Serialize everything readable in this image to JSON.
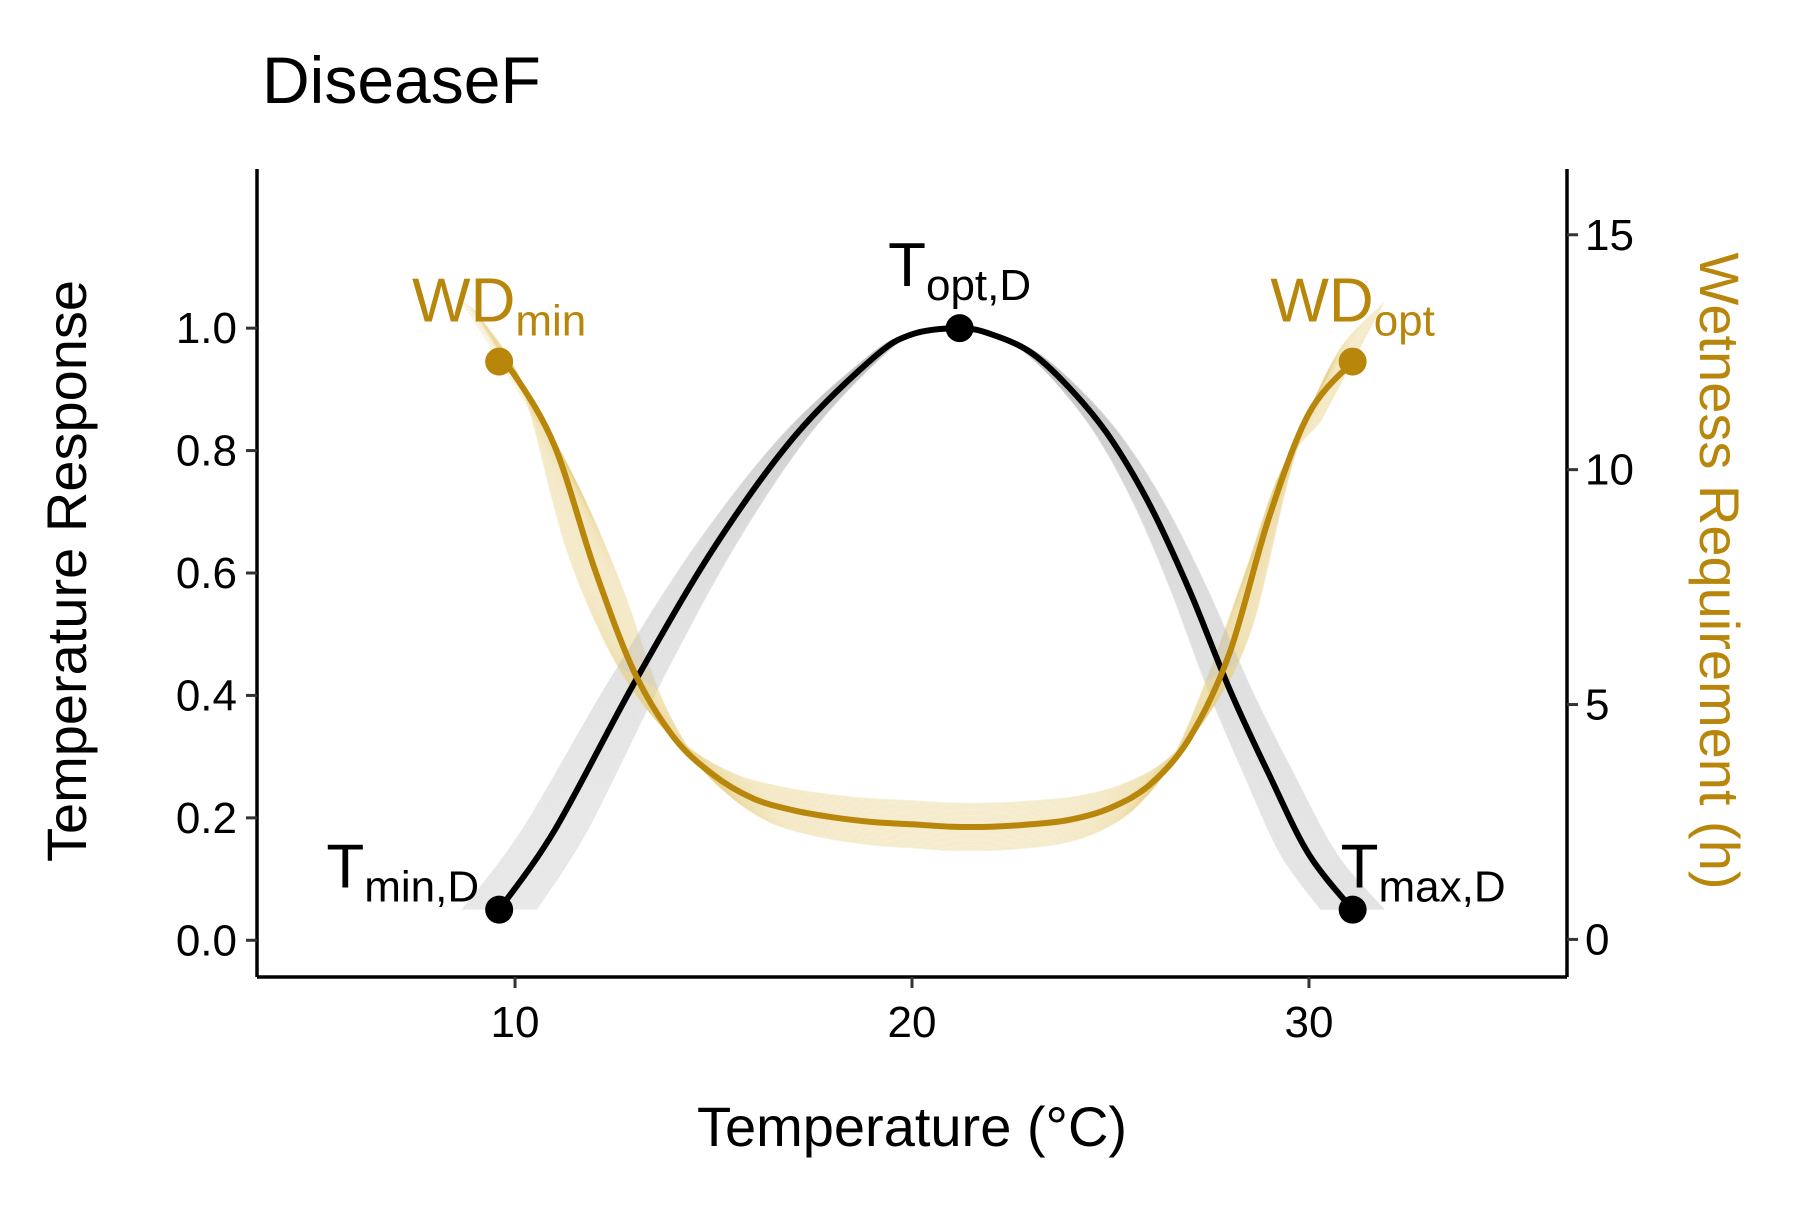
{
  "chart_data": {
    "type": "line",
    "title": "DiseaseF",
    "xlabel": "Temperature (°C)",
    "ylabel": "Temperature Response",
    "y2label": "Wetness Requirement (h)",
    "xlim": [
      3.5,
      36.5
    ],
    "ylim": [
      -0.06,
      1.26
    ],
    "y2lim": [
      -0.8,
      16.4
    ],
    "x_ticks": [
      10,
      20,
      30
    ],
    "y_ticks": [
      0.0,
      0.2,
      0.4,
      0.6,
      0.8,
      1.0
    ],
    "y2_ticks": [
      0,
      5,
      10,
      15
    ],
    "grid": false,
    "colors": {
      "temperature": "#000000",
      "wetness": "#B8860B",
      "temperature_band": "#bdbdbd",
      "wetness_band": "#e8d28a"
    },
    "series": [
      {
        "axis": "left",
        "x": [
          9.6,
          11,
          13,
          15,
          17,
          19,
          20,
          21.2,
          22,
          23,
          24,
          25,
          26,
          27,
          28,
          29,
          30,
          31.1
        ],
        "y": [
          0.05,
          0.18,
          0.42,
          0.64,
          0.82,
          0.95,
          0.99,
          1.0,
          0.99,
          0.96,
          0.9,
          0.82,
          0.71,
          0.57,
          0.41,
          0.27,
          0.14,
          0.05
        ]
      },
      {
        "axis": "right",
        "x": [
          9.6,
          10,
          11,
          12,
          13,
          14,
          15,
          16,
          17,
          18,
          19,
          20,
          21,
          22,
          23,
          24,
          25,
          26,
          27,
          28,
          29,
          30,
          31.1
        ],
        "y": [
          12.3,
          12.0,
          10.5,
          7.9,
          5.7,
          4.3,
          3.5,
          3.0,
          2.75,
          2.6,
          2.5,
          2.45,
          2.4,
          2.4,
          2.45,
          2.55,
          2.8,
          3.3,
          4.3,
          6.1,
          9.0,
          11.2,
          12.3
        ]
      }
    ],
    "annotations": [
      {
        "main": "T",
        "sub": "min,D",
        "x": 9.6,
        "y": 0.05,
        "axis": "left"
      },
      {
        "main": "T",
        "sub": "opt,D",
        "x": 21.2,
        "y": 1.0,
        "axis": "left"
      },
      {
        "main": "T",
        "sub": "max,D",
        "x": 31.1,
        "y": 0.05,
        "axis": "left"
      },
      {
        "main": "WD",
        "sub": "min",
        "x": 9.6,
        "y": 12.3,
        "axis": "right"
      },
      {
        "main": "WD",
        "sub": "opt",
        "x": 31.1,
        "y": 12.3,
        "axis": "right"
      }
    ]
  }
}
